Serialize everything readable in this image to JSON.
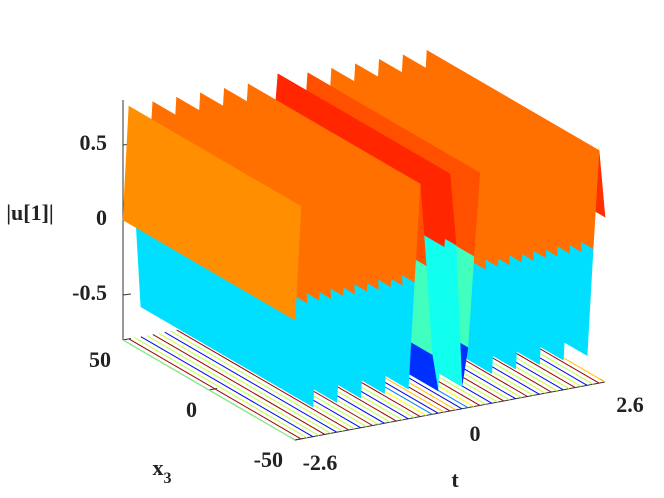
{
  "chart_data": {
    "type": "surface",
    "zlabel": "|u[1]|",
    "ylabel": "x",
    "ylabel_subscript": "3",
    "xlabel": "t",
    "x": [
      -2.6,
      -2.5,
      -2.4,
      -2.3,
      -2.2,
      -2.1,
      -2.0,
      -1.9,
      -1.8,
      -1.7,
      -1.6,
      -1.5,
      -1.4,
      -1.3,
      -1.2,
      -1.1,
      -1.0,
      -0.9,
      -0.8,
      -0.7,
      -0.6,
      -0.5,
      -0.4,
      -0.3,
      -0.2,
      -0.1,
      0.0,
      0.1,
      0.2,
      0.3,
      0.4,
      0.5,
      0.6,
      0.7,
      0.8,
      0.9,
      1.0,
      1.1,
      1.2,
      1.3,
      1.4,
      1.5,
      1.6,
      1.7,
      1.8,
      1.9,
      2.0,
      2.1,
      2.2,
      2.3,
      2.4,
      2.5,
      2.6
    ],
    "values": [
      0.0,
      0.75,
      0.1,
      -0.6,
      0.1,
      0.75,
      0.1,
      -0.6,
      0.1,
      0.75,
      0.1,
      -0.6,
      0.1,
      0.75,
      0.1,
      -0.6,
      0.1,
      0.75,
      0.1,
      -0.6,
      0.1,
      0.75,
      0.2,
      -0.4,
      -0.65,
      0.3,
      0.78,
      0.3,
      -0.65,
      -0.4,
      0.2,
      0.75,
      0.1,
      -0.6,
      0.1,
      0.75,
      0.1,
      -0.6,
      0.1,
      0.75,
      0.1,
      -0.6,
      0.1,
      0.75,
      0.1,
      -0.6,
      0.1,
      0.75,
      0.1,
      -0.6,
      0.1,
      0.75,
      0.3
    ],
    "xlim": [
      -2.6,
      2.6
    ],
    "xticks": [
      -2.6,
      0,
      2.6
    ],
    "ylim": [
      -50,
      50
    ],
    "yticks": [
      50,
      0,
      -50
    ],
    "zlim": [
      -0.8,
      0.8
    ],
    "zticks": [
      0.5,
      0,
      -0.5
    ],
    "colormap": "jet",
    "floor_contours": true
  }
}
